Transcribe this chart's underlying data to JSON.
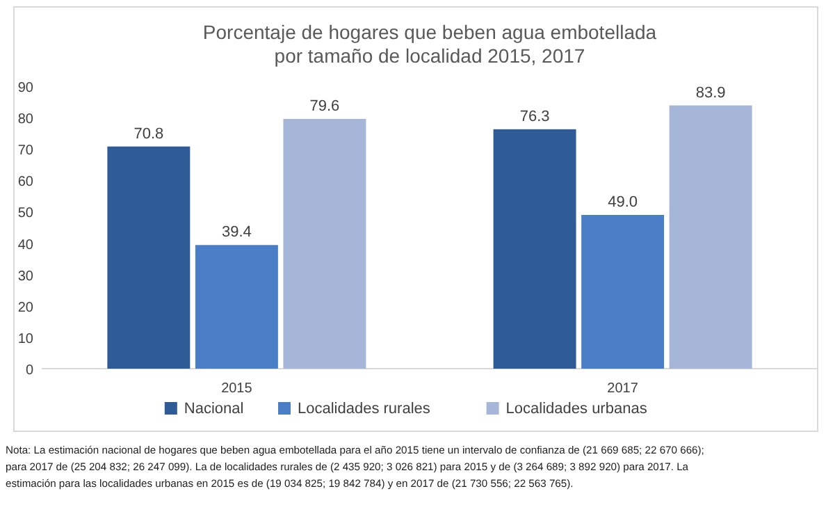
{
  "chart_data": {
    "type": "bar",
    "title": "Porcentaje de hogares que beben agua embotellada\npor tamaño de localidad 2015, 2017",
    "categories": [
      "2015",
      "2017"
    ],
    "series": [
      {
        "name": "Nacional",
        "color": "#2f5b97",
        "values": [
          70.8,
          76.3
        ],
        "value_labels": [
          "70.8",
          "76.3"
        ]
      },
      {
        "name": "Localidades rurales",
        "color": "#4a7fc8",
        "values": [
          39.4,
          49.0
        ],
        "value_labels": [
          "39.4",
          "49.0"
        ]
      },
      {
        "name": "Localidades urbanas",
        "color": "#a6b6d9",
        "values": [
          79.6,
          83.9
        ],
        "value_labels": [
          "79.6",
          "83.9"
        ]
      }
    ],
    "ylim": [
      0,
      90
    ],
    "yticks": [
      0,
      10,
      20,
      30,
      40,
      50,
      60,
      70,
      80,
      90
    ],
    "grid": false,
    "legend": "bottom",
    "annotations": [
      "Nota: La estimación nacional de hogares que beben agua embotellada para el año 2015 tiene un intervalo de confianza de (21 669 685; 22 670 666); para 2017 de (25 204 832; 26 247 099). La de localidades rurales de (2 435 920; 3 026 821) para 2015 y de (3 264 689; 3 892 920) para 2017. La estimación para las localidades urbanas en 2015 es de (19 034 825; 19 842 784) y en 2017 de (21 730 556; 22 563 765)."
    ]
  }
}
